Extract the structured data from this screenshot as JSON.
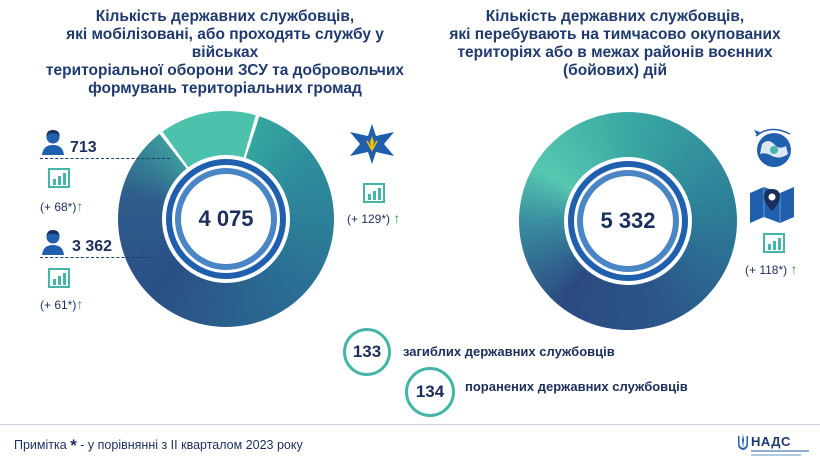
{
  "left": {
    "title_line1": "Кількість державних службовців,",
    "title_line2": "які мобілізовані, або проходять службу у військах",
    "title_line3": "територіальної оборони ЗСУ та добровольчих",
    "title_line4": "формувань територіальних громад",
    "total": "4 075",
    "female_count": "713",
    "female_delta": "(+ 68*)",
    "male_count": "3 362",
    "male_delta": "(+ 61*)",
    "emblem_delta": "(+ 129*)"
  },
  "right": {
    "title_line1": "Кількість державних службовців,",
    "title_line2": "які перебувають на тимчасово окупованих",
    "title_line3": "територіях або в межах районів воєнних",
    "title_line4": "(бойових) дій",
    "total": "5 332",
    "delta": "(+ 118*)"
  },
  "badges": {
    "killed_count": "133",
    "killed_label": "загиблих державних службовців",
    "wounded_count": "134",
    "wounded_label": "поранених державних службовців"
  },
  "footer": {
    "note_prefix": "Примітка",
    "note_star": "*",
    "note_text": " - у порівнянні з II кварталом 2023 року",
    "logo_text": "НАДС"
  },
  "arrow_glyph": "↑",
  "colors": {
    "title": "#1f3a6e",
    "teal": "#45b5a9",
    "navy": "#1b2f5c",
    "green": "#2e9a3c"
  },
  "icons": [
    "female-person-icon",
    "male-person-icon",
    "growth-chart-icon",
    "armed-forces-cross-icon",
    "globe-plane-icon",
    "map-pin-icon"
  ]
}
